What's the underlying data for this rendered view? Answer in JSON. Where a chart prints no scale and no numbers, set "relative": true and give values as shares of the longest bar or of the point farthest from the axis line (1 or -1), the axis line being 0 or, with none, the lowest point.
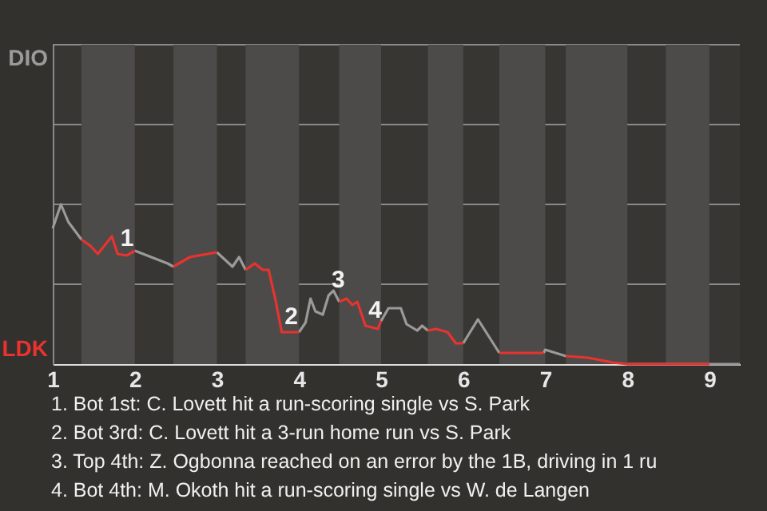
{
  "chart_data": {
    "type": "line",
    "relative": true,
    "x": [
      1.0,
      1.1,
      1.19,
      1.35,
      1.46,
      1.55,
      1.72,
      1.79,
      1.9,
      2.0,
      2.4,
      2.47,
      2.67,
      3.0,
      3.19,
      3.27,
      3.35,
      3.46,
      3.56,
      3.63,
      3.71,
      3.79,
      4.0,
      4.08,
      4.14,
      4.2,
      4.29,
      4.36,
      4.42,
      4.49,
      4.58,
      4.65,
      4.71,
      4.81,
      4.96,
      5.0,
      5.09,
      5.24,
      5.31,
      5.44,
      5.5,
      5.57,
      5.67,
      5.81,
      5.91,
      6.0,
      6.18,
      6.44,
      6.67,
      6.98,
      7.0,
      7.25,
      7.52,
      7.82,
      8.0,
      8.47,
      9.0,
      9.37
    ],
    "series": [
      {
        "color": "#9a9a9a",
        "values": [
          0.85,
          1,
          0.89,
          0.78,
          null,
          null,
          null,
          null,
          null,
          0.71,
          0.63,
          0.61,
          null,
          0.7,
          0.61,
          0.67,
          0.59,
          null,
          null,
          null,
          null,
          null,
          0.2,
          0.26,
          0.41,
          0.33,
          0.31,
          0.43,
          0.46,
          0.39,
          null,
          null,
          null,
          null,
          null,
          0.27,
          0.35,
          0.35,
          0.25,
          0.21,
          0.24,
          0.21,
          null,
          null,
          null,
          0.13,
          0.28,
          0.07,
          null,
          0.07,
          0.09,
          0.05,
          null,
          null,
          0,
          0,
          0,
          0
        ]
      },
      {
        "color": "#e8332f",
        "values": [
          null,
          null,
          null,
          0.78,
          0.74,
          0.69,
          0.8,
          0.69,
          0.68,
          0.71,
          null,
          0.61,
          0.67,
          0.7,
          null,
          null,
          0.59,
          0.63,
          0.59,
          0.59,
          0.41,
          0.2,
          0.2,
          null,
          null,
          null,
          null,
          null,
          null,
          0.39,
          0.41,
          0.37,
          0.39,
          0.24,
          0.22,
          0.27,
          null,
          null,
          null,
          null,
          null,
          0.21,
          0.22,
          0.2,
          0.13,
          0.13,
          null,
          0.07,
          0.07,
          0.07,
          null,
          0.05,
          0.04,
          0.01,
          0,
          0,
          0,
          null
        ]
      }
    ],
    "xlim": [
      1,
      9.37
    ],
    "xticks": [
      1,
      2,
      3,
      4,
      5,
      6,
      7,
      8,
      9
    ],
    "ref_lines": [
      {
        "axis": "y",
        "value": 0.5,
        "color": "#8a8a8a"
      },
      {
        "axis": "y",
        "value": 1,
        "color": "#8a8a8a"
      },
      {
        "axis": "y",
        "value": 1.5,
        "color": "#8a8a8a"
      },
      {
        "axis": "y",
        "value": 2,
        "color": "#8a8a8a"
      }
    ],
    "bands": [
      {
        "axis": "x",
        "from": 1.35,
        "to": 2,
        "color": "#4d4b49"
      },
      {
        "axis": "x",
        "from": 2.47,
        "to": 3,
        "color": "#4d4b49"
      },
      {
        "axis": "x",
        "from": 3.35,
        "to": 4,
        "color": "#4d4b49"
      },
      {
        "axis": "x",
        "from": 4.49,
        "to": 5,
        "color": "#4d4b49"
      },
      {
        "axis": "x",
        "from": 5.57,
        "to": 6,
        "color": "#4d4b49"
      },
      {
        "axis": "x",
        "from": 6.44,
        "to": 7,
        "color": "#4d4b49"
      },
      {
        "axis": "x",
        "from": 7.25,
        "to": 8,
        "color": "#4d4b49"
      },
      {
        "axis": "x",
        "from": 8.47,
        "to": 9,
        "color": "#4d4b49"
      }
    ],
    "annotations": [
      "DIO",
      "LDK",
      {
        "text": "1",
        "x": 1.79,
        "y": 0.69
      },
      {
        "text": "2",
        "x": 3.79,
        "y": 0.2
      },
      {
        "text": "3",
        "x": 4.36,
        "y": 0.43
      },
      {
        "text": "4",
        "x": 4.81,
        "y": 0.24
      },
      "1. Bot 1st: C. Lovett hit a run-scoring single vs S. Park",
      "2. Bot 3rd: C. Lovett hit a 3-run home run vs S. Park",
      "3. Top 4th: Z. Ogbonna reached on an error by the 1B, driving in 1 ru",
      "4. Bot 4th: M. Okoth hit a run-scoring single vs W. de Langen"
    ],
    "line_style": "solid",
    "marker": "none"
  }
}
